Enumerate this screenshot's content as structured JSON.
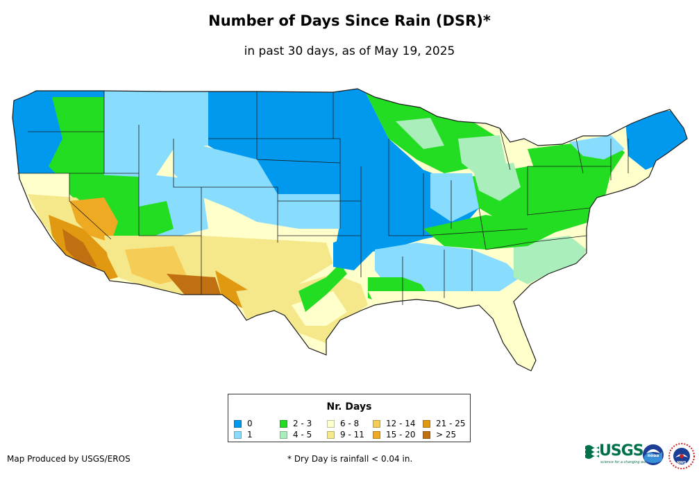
{
  "title": "Number of Days Since Rain (DSR)*",
  "subtitle": "in past 30 days, as of May 19, 2025",
  "legend": {
    "title": "Nr. Days",
    "items": [
      {
        "label": "0",
        "color": "#0099EE"
      },
      {
        "label": "1",
        "color": "#88DDFF"
      },
      {
        "label": "2 - 3",
        "color": "#22DD22"
      },
      {
        "label": "4 - 5",
        "color": "#AAEEBB"
      },
      {
        "label": "6 - 8",
        "color": "#FFFFCC"
      },
      {
        "label": "9 - 11",
        "color": "#F5E88A"
      },
      {
        "label": "12 - 14",
        "color": "#F5CC55"
      },
      {
        "label": "15 - 20",
        "color": "#EEAA22"
      },
      {
        "label": "21 - 25",
        "color": "#E09910"
      },
      {
        "label": "> 25",
        "color": "#C07010"
      }
    ]
  },
  "footer": {
    "credit": "Map Produced by USGS/EROS",
    "note": "* Dry Day is rainfall < 0.04 in."
  },
  "logos": {
    "usgs": "USGS",
    "usgs_tagline": "science for a changing world",
    "noaa": "noaa",
    "nws": "NWS"
  }
}
